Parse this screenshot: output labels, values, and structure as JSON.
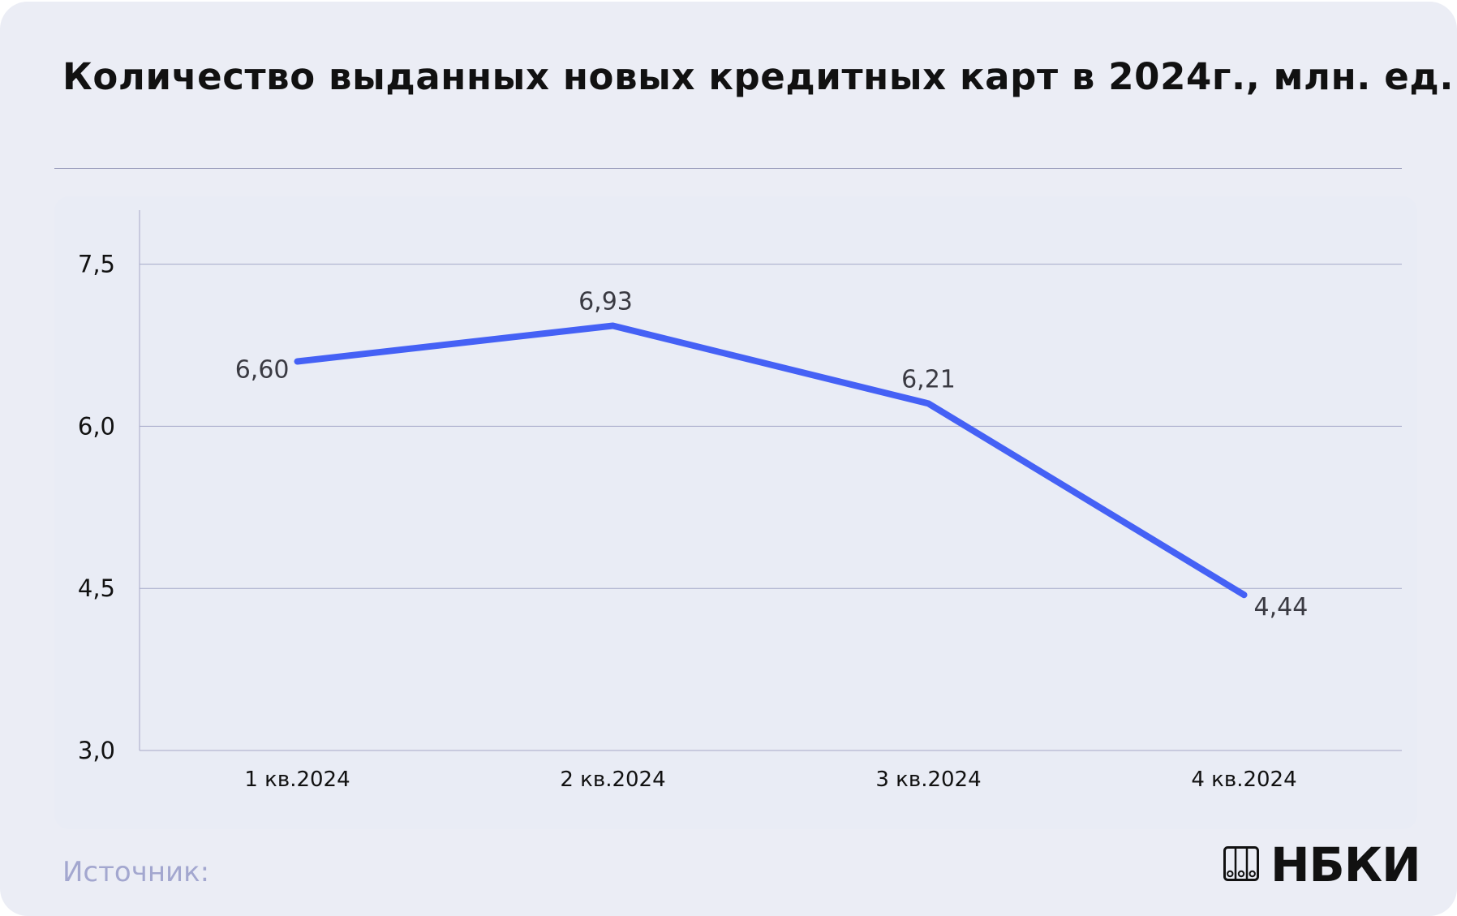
{
  "header": {
    "title": "Количество выданных новых кредитных карт в 2024г., млн. ед."
  },
  "footer": {
    "source_label": "Источник:",
    "logo_text": "НБКИ"
  },
  "colors": {
    "background": "#ebedf5",
    "line": "#4561f5",
    "grid": "#a6a9c8",
    "source_text": "#a3a7cf"
  },
  "chart_data": {
    "type": "line",
    "title": "Количество выданных новых кредитных карт в 2024г., млн. ед.",
    "categories": [
      "1 кв.2024",
      "2 кв.2024",
      "3 кв.2024",
      "4 кв.2024"
    ],
    "series": [
      {
        "values": [
          6.6,
          6.93,
          6.21,
          4.44
        ]
      }
    ],
    "data_labels": [
      "6,60",
      "6,93",
      "6,21",
      "4,44"
    ],
    "ylim": [
      3.0,
      8.0
    ],
    "yticks": [
      3.0,
      4.5,
      6.0,
      7.5
    ],
    "ytick_labels": [
      "3,0",
      "4,5",
      "6,0",
      "7,5"
    ],
    "grid": "horizontal",
    "legend": "none"
  }
}
